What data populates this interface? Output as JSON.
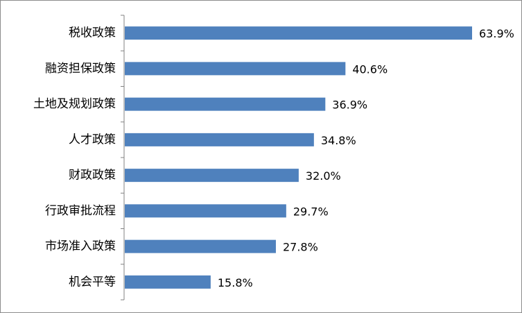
{
  "chart_data": {
    "type": "bar",
    "orientation": "horizontal",
    "categories": [
      "税收政策",
      "融资担保政策",
      "土地及规划政策",
      "人才政策",
      "财政政策",
      "行政审批流程",
      "市场准入政策",
      "机会平等"
    ],
    "values": [
      63.9,
      40.6,
      36.9,
      34.8,
      32.0,
      29.7,
      27.8,
      15.8
    ],
    "value_labels": [
      "63.9%",
      "40.6%",
      "36.9%",
      "34.8%",
      "32.0%",
      "29.7%",
      "27.8%",
      "15.8%"
    ],
    "title": "",
    "xlabel": "",
    "ylabel": "",
    "xlim": [
      0,
      70
    ],
    "grid": false,
    "legend": "none",
    "bar_color": "#4F81BD",
    "axis_color": "#808080"
  }
}
